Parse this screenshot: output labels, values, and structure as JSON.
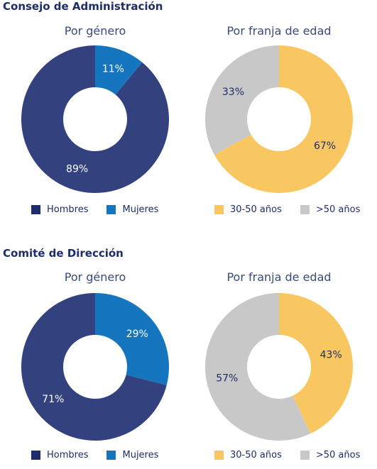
{
  "sections": [
    {
      "title": "Consejo de Administración",
      "charts": [
        {
          "title": "Por género",
          "legend": [
            {
              "label": "Hombres",
              "color": "#1d2d6b"
            },
            {
              "label": "Mujeres",
              "color": "#1575be"
            }
          ]
        },
        {
          "title": "Por franja de edad",
          "legend": [
            {
              "label": "30-50 años",
              "color": "#f9c761"
            },
            {
              "label": ">50 años",
              "color": "#c8c8c8"
            }
          ]
        }
      ]
    },
    {
      "title": "Comité de Dirección",
      "charts": [
        {
          "title": "Por género",
          "legend": [
            {
              "label": "Hombres",
              "color": "#1d2d6b"
            },
            {
              "label": "Mujeres",
              "color": "#1575be"
            }
          ]
        },
        {
          "title": "Por franja de edad",
          "legend": [
            {
              "label": "30-50 años",
              "color": "#f9c761"
            },
            {
              "label": ">50 años",
              "color": "#c8c8c8"
            }
          ]
        }
      ]
    }
  ],
  "chart_data": [
    {
      "type": "pie",
      "donut": true,
      "title": "Por género",
      "group": "Consejo de Administración",
      "slices": [
        {
          "label": "Mujeres",
          "value": 11,
          "display": "11%",
          "color": "#1575be",
          "text_color": "#ffffff"
        },
        {
          "label": "Hombres",
          "value": 89,
          "display": "89%",
          "color": "#33417f",
          "text_color": "#ffffff"
        }
      ]
    },
    {
      "type": "pie",
      "donut": true,
      "title": "Por franja de edad",
      "group": "Consejo de Administración",
      "slices": [
        {
          "label": "30-50 años",
          "value": 67,
          "display": "67%",
          "color": "#f9c761",
          "text_color": "#1d2d6b"
        },
        {
          "label": ">50 años",
          "value": 33,
          "display": "33%",
          "color": "#c8c8c8",
          "text_color": "#1d2d6b"
        }
      ]
    },
    {
      "type": "pie",
      "donut": true,
      "title": "Por género",
      "group": "Comité de Dirección",
      "slices": [
        {
          "label": "Mujeres",
          "value": 29,
          "display": "29%",
          "color": "#1575be",
          "text_color": "#ffffff"
        },
        {
          "label": "Hombres",
          "value": 71,
          "display": "71%",
          "color": "#33417f",
          "text_color": "#ffffff"
        }
      ]
    },
    {
      "type": "pie",
      "donut": true,
      "title": "Por franja de edad",
      "group": "Comité de Dirección",
      "slices": [
        {
          "label": "30-50 años",
          "value": 43,
          "display": "43%",
          "color": "#f9c761",
          "text_color": "#1d2d6b"
        },
        {
          "label": ">50 años",
          "value": 57,
          "display": "57%",
          "color": "#c8c8c8",
          "text_color": "#1d2d6b"
        }
      ]
    }
  ]
}
